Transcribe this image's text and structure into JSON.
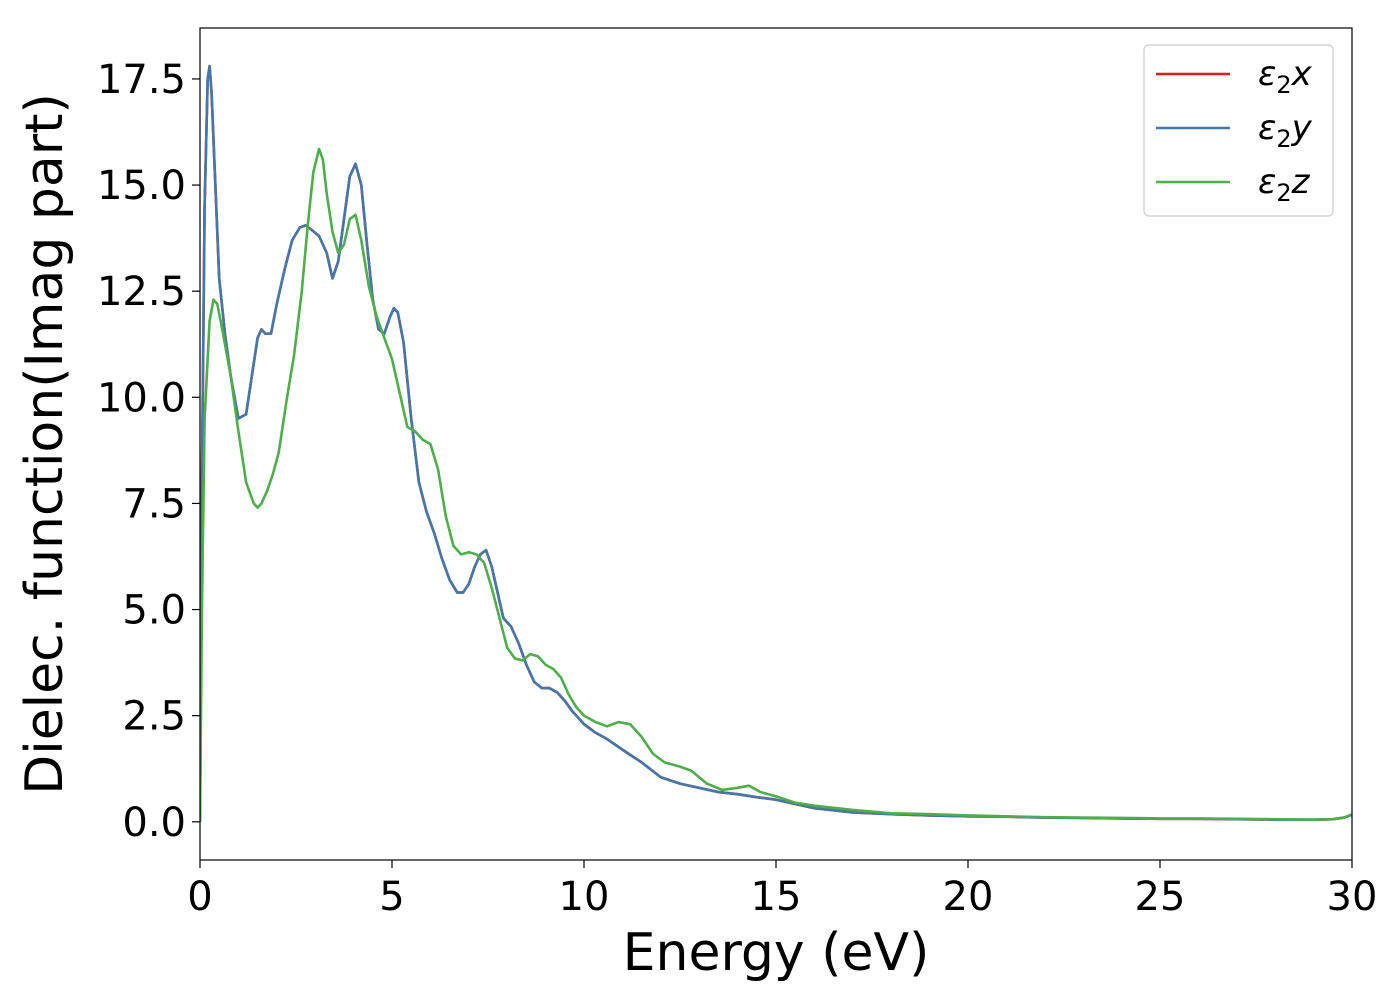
{
  "chart_data": {
    "type": "line",
    "title": "",
    "xlabel": "Energy (eV)",
    "ylabel": "Dielec. function(Imag part)",
    "xlim": [
      0,
      30
    ],
    "ylim": [
      -0.9,
      18.7
    ],
    "xticks": [
      0,
      5,
      10,
      15,
      20,
      25,
      30
    ],
    "yticks": [
      0.0,
      2.5,
      5.0,
      7.5,
      10.0,
      12.5,
      15.0,
      17.5
    ],
    "xtick_labels": [
      "0",
      "5",
      "10",
      "15",
      "20",
      "25",
      "30"
    ],
    "ytick_labels": [
      "0.0",
      "2.5",
      "5.0",
      "7.5",
      "10.0",
      "12.5",
      "15.0",
      "17.5"
    ],
    "grid": false,
    "legend_position": "top-right",
    "series": [
      {
        "name": "ε2x",
        "legend_base": "ε",
        "legend_sub": "2",
        "legend_suffix": "x",
        "color": "#e41a1c",
        "x": [
          0,
          0.05,
          0.12,
          0.2,
          0.25,
          0.3,
          0.4,
          0.5,
          0.65,
          0.8,
          1.0,
          1.2,
          1.35,
          1.5,
          1.6,
          1.7,
          1.85,
          2.0,
          2.2,
          2.4,
          2.6,
          2.75,
          2.9,
          3.1,
          3.3,
          3.45,
          3.6,
          3.75,
          3.9,
          4.05,
          4.2,
          4.35,
          4.5,
          4.65,
          4.8,
          4.95,
          5.05,
          5.15,
          5.3,
          5.5,
          5.7,
          5.9,
          6.1,
          6.3,
          6.5,
          6.7,
          6.85,
          7.0,
          7.15,
          7.3,
          7.45,
          7.6,
          7.75,
          7.9,
          8.1,
          8.3,
          8.5,
          8.7,
          8.9,
          9.1,
          9.3,
          9.5,
          9.7,
          10.0,
          10.3,
          10.6,
          11.0,
          11.5,
          12.0,
          12.5,
          13.0,
          13.5,
          14.0,
          14.5,
          15.0,
          15.5,
          16.0,
          17.0,
          18.0,
          19.0,
          20.0,
          21.0,
          22.0,
          23.0,
          24.0,
          25.0,
          26.0,
          27.0,
          28.0,
          29.0,
          29.5,
          29.8,
          30.0
        ],
        "y": [
          0.0,
          8.0,
          14.5,
          17.5,
          17.8,
          17.2,
          15.0,
          12.8,
          11.5,
          10.5,
          9.5,
          9.6,
          10.5,
          11.4,
          11.6,
          11.5,
          11.5,
          12.2,
          13.0,
          13.7,
          14.0,
          14.05,
          13.95,
          13.8,
          13.4,
          12.8,
          13.2,
          14.2,
          15.2,
          15.5,
          15.0,
          13.6,
          12.3,
          11.6,
          11.5,
          11.9,
          12.1,
          12.0,
          11.3,
          9.5,
          8.0,
          7.3,
          6.8,
          6.2,
          5.7,
          5.4,
          5.4,
          5.6,
          6.0,
          6.3,
          6.4,
          6.0,
          5.4,
          4.8,
          4.6,
          4.2,
          3.7,
          3.3,
          3.15,
          3.15,
          3.05,
          2.85,
          2.6,
          2.3,
          2.1,
          1.95,
          1.7,
          1.4,
          1.05,
          0.9,
          0.8,
          0.7,
          0.65,
          0.58,
          0.52,
          0.42,
          0.32,
          0.22,
          0.18,
          0.15,
          0.13,
          0.12,
          0.1,
          0.09,
          0.08,
          0.07,
          0.07,
          0.06,
          0.05,
          0.05,
          0.06,
          0.1,
          0.17
        ]
      },
      {
        "name": "ε2y",
        "legend_base": "ε",
        "legend_sub": "2",
        "legend_suffix": "y",
        "color": "#4477aa",
        "x": [
          0,
          0.05,
          0.12,
          0.2,
          0.25,
          0.3,
          0.4,
          0.5,
          0.65,
          0.8,
          1.0,
          1.2,
          1.35,
          1.5,
          1.6,
          1.7,
          1.85,
          2.0,
          2.2,
          2.4,
          2.6,
          2.75,
          2.9,
          3.1,
          3.3,
          3.45,
          3.6,
          3.75,
          3.9,
          4.05,
          4.2,
          4.35,
          4.5,
          4.65,
          4.8,
          4.95,
          5.05,
          5.15,
          5.3,
          5.5,
          5.7,
          5.9,
          6.1,
          6.3,
          6.5,
          6.7,
          6.85,
          7.0,
          7.15,
          7.3,
          7.45,
          7.6,
          7.75,
          7.9,
          8.1,
          8.3,
          8.5,
          8.7,
          8.9,
          9.1,
          9.3,
          9.5,
          9.7,
          10.0,
          10.3,
          10.6,
          11.0,
          11.5,
          12.0,
          12.5,
          13.0,
          13.5,
          14.0,
          14.5,
          15.0,
          15.5,
          16.0,
          17.0,
          18.0,
          19.0,
          20.0,
          21.0,
          22.0,
          23.0,
          24.0,
          25.0,
          26.0,
          27.0,
          28.0,
          29.0,
          29.5,
          29.8,
          30.0
        ],
        "y": [
          0.0,
          8.0,
          14.5,
          17.5,
          17.8,
          17.2,
          15.0,
          12.8,
          11.5,
          10.5,
          9.5,
          9.6,
          10.5,
          11.4,
          11.6,
          11.5,
          11.5,
          12.2,
          13.0,
          13.7,
          14.0,
          14.05,
          13.95,
          13.8,
          13.4,
          12.8,
          13.2,
          14.2,
          15.2,
          15.5,
          15.0,
          13.6,
          12.3,
          11.6,
          11.5,
          11.9,
          12.1,
          12.0,
          11.3,
          9.5,
          8.0,
          7.3,
          6.8,
          6.2,
          5.7,
          5.4,
          5.4,
          5.6,
          6.0,
          6.3,
          6.4,
          6.0,
          5.4,
          4.8,
          4.6,
          4.2,
          3.7,
          3.3,
          3.15,
          3.15,
          3.05,
          2.85,
          2.6,
          2.3,
          2.1,
          1.95,
          1.7,
          1.4,
          1.05,
          0.9,
          0.8,
          0.7,
          0.65,
          0.58,
          0.52,
          0.42,
          0.32,
          0.22,
          0.18,
          0.15,
          0.13,
          0.12,
          0.1,
          0.09,
          0.08,
          0.07,
          0.07,
          0.06,
          0.05,
          0.05,
          0.06,
          0.1,
          0.17
        ]
      },
      {
        "name": "ε2z",
        "legend_base": "ε",
        "legend_sub": "2",
        "legend_suffix": "z",
        "color": "#4daf4a",
        "x": [
          0,
          0.05,
          0.12,
          0.25,
          0.35,
          0.45,
          0.6,
          0.8,
          1.0,
          1.2,
          1.4,
          1.5,
          1.6,
          1.75,
          1.9,
          2.05,
          2.25,
          2.45,
          2.65,
          2.8,
          2.95,
          3.1,
          3.2,
          3.3,
          3.45,
          3.6,
          3.75,
          3.9,
          4.05,
          4.2,
          4.4,
          4.6,
          4.8,
          5.0,
          5.2,
          5.4,
          5.6,
          5.8,
          6.0,
          6.2,
          6.4,
          6.6,
          6.8,
          7.0,
          7.2,
          7.4,
          7.6,
          7.8,
          8.0,
          8.2,
          8.4,
          8.6,
          8.8,
          9.0,
          9.2,
          9.4,
          9.6,
          9.8,
          10.0,
          10.3,
          10.6,
          10.9,
          11.2,
          11.5,
          11.8,
          12.1,
          12.5,
          12.8,
          13.2,
          13.6,
          14.0,
          14.3,
          14.6,
          15.0,
          15.5,
          16.0,
          17.0,
          18.0,
          19.0,
          20.0,
          21.0,
          22.0,
          23.0,
          24.0,
          25.0,
          26.0,
          27.0,
          28.0,
          29.0,
          29.5,
          29.8,
          30.0
        ],
        "y": [
          0.0,
          5.0,
          9.5,
          11.8,
          12.3,
          12.2,
          11.5,
          10.5,
          9.2,
          8.0,
          7.5,
          7.4,
          7.5,
          7.8,
          8.2,
          8.7,
          9.9,
          11.0,
          12.5,
          14.0,
          15.3,
          15.85,
          15.6,
          14.8,
          13.9,
          13.4,
          13.6,
          14.2,
          14.3,
          13.7,
          12.6,
          11.9,
          11.4,
          10.9,
          10.1,
          9.3,
          9.2,
          9.0,
          8.9,
          8.3,
          7.2,
          6.5,
          6.3,
          6.35,
          6.3,
          6.1,
          5.5,
          4.8,
          4.1,
          3.85,
          3.8,
          3.95,
          3.9,
          3.7,
          3.6,
          3.4,
          3.0,
          2.7,
          2.5,
          2.35,
          2.25,
          2.35,
          2.3,
          2.0,
          1.6,
          1.4,
          1.3,
          1.2,
          0.9,
          0.75,
          0.8,
          0.85,
          0.7,
          0.6,
          0.45,
          0.38,
          0.28,
          0.2,
          0.18,
          0.15,
          0.13,
          0.11,
          0.1,
          0.09,
          0.08,
          0.08,
          0.07,
          0.06,
          0.05,
          0.06,
          0.1,
          0.17
        ]
      }
    ]
  }
}
